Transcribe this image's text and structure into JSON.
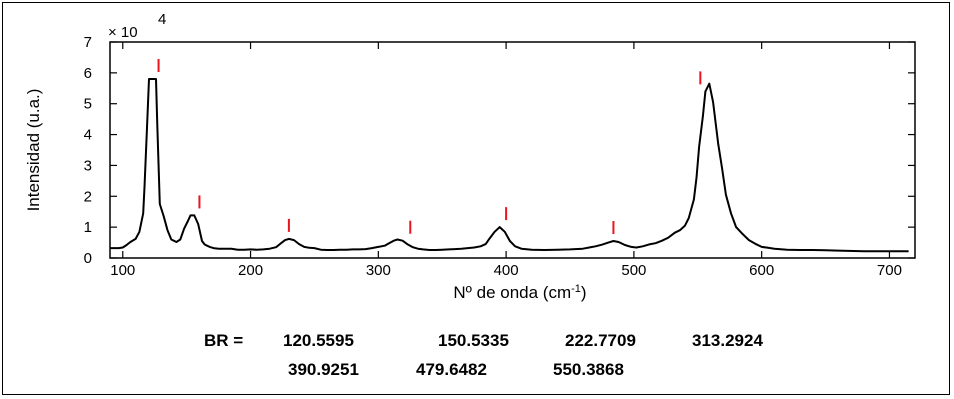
{
  "chart_data": {
    "type": "line",
    "xlabel": "Nº de onda (cm",
    "xlabel_sup": "-1",
    "xlabel_close": ")",
    "ylabel": "Intensidad (u.a.)",
    "y_multiplier": "× 10",
    "y_multiplier_exp": "4",
    "xlim": [
      90,
      720
    ],
    "ylim": [
      0,
      7
    ],
    "xticks": [
      100,
      200,
      300,
      400,
      500,
      600,
      700
    ],
    "yticks": [
      0,
      1,
      2,
      3,
      4,
      5,
      6,
      7
    ],
    "grid": false,
    "line_color": "#000000",
    "marker_color": "#e8141e",
    "series": [
      {
        "x": [
          90,
          97,
          100,
          103,
          106,
          110,
          113,
          116,
          117,
          119,
          120.5,
          126,
          127,
          129,
          132,
          135,
          138,
          142,
          145,
          148,
          151,
          153,
          156,
          159,
          162,
          164,
          166,
          168,
          171,
          175,
          180,
          185,
          190,
          195,
          200,
          205,
          210,
          215,
          220,
          223,
          227,
          230,
          234,
          238,
          242,
          246,
          250,
          255,
          260,
          265,
          270,
          275,
          280,
          285,
          290,
          295,
          300,
          305,
          308,
          312,
          315,
          319,
          323,
          327,
          331,
          335,
          340,
          345,
          350,
          355,
          360,
          365,
          370,
          375,
          380,
          384,
          387,
          391,
          395,
          399,
          403,
          407,
          412,
          420,
          430,
          440,
          450,
          460,
          465,
          470,
          475,
          480,
          484,
          488,
          493,
          498,
          502,
          507,
          512,
          517,
          522,
          527,
          532,
          536,
          540,
          543,
          547,
          549,
          551,
          554,
          556,
          559,
          562,
          566,
          569,
          572,
          576,
          580,
          585,
          590,
          595,
          600,
          605,
          610,
          620,
          630,
          640,
          650,
          660,
          680,
          700,
          715
        ],
        "y": [
          0.32,
          0.32,
          0.34,
          0.42,
          0.52,
          0.62,
          0.85,
          1.45,
          2.3,
          4.3,
          5.8,
          5.8,
          4.3,
          1.75,
          1.35,
          0.9,
          0.6,
          0.52,
          0.6,
          0.95,
          1.2,
          1.38,
          1.38,
          1.1,
          0.55,
          0.44,
          0.4,
          0.36,
          0.32,
          0.3,
          0.3,
          0.3,
          0.27,
          0.27,
          0.28,
          0.27,
          0.28,
          0.3,
          0.35,
          0.45,
          0.58,
          0.62,
          0.58,
          0.45,
          0.36,
          0.33,
          0.32,
          0.27,
          0.26,
          0.26,
          0.27,
          0.27,
          0.28,
          0.28,
          0.29,
          0.32,
          0.36,
          0.4,
          0.47,
          0.56,
          0.6,
          0.56,
          0.44,
          0.35,
          0.3,
          0.28,
          0.26,
          0.26,
          0.27,
          0.28,
          0.29,
          0.3,
          0.32,
          0.34,
          0.38,
          0.45,
          0.63,
          0.85,
          1.0,
          0.85,
          0.55,
          0.38,
          0.3,
          0.27,
          0.26,
          0.27,
          0.28,
          0.3,
          0.34,
          0.38,
          0.43,
          0.5,
          0.55,
          0.52,
          0.42,
          0.36,
          0.34,
          0.38,
          0.44,
          0.48,
          0.56,
          0.66,
          0.82,
          0.9,
          1.05,
          1.3,
          1.9,
          2.6,
          3.6,
          4.6,
          5.4,
          5.65,
          5.05,
          3.7,
          2.9,
          2.05,
          1.45,
          1.0,
          0.78,
          0.58,
          0.46,
          0.36,
          0.33,
          0.3,
          0.27,
          0.26,
          0.26,
          0.25,
          0.24,
          0.22,
          0.22,
          0.22
        ]
      }
    ],
    "peak_markers": [
      128,
      160,
      230,
      325,
      400,
      484,
      552
    ]
  },
  "br_label": "BR  =",
  "br_values_row1": [
    "120.5595",
    "150.5335",
    "222.7709",
    "313.2924"
  ],
  "br_values_row2": [
    "390.9251",
    "479.6482",
    "550.3868"
  ]
}
